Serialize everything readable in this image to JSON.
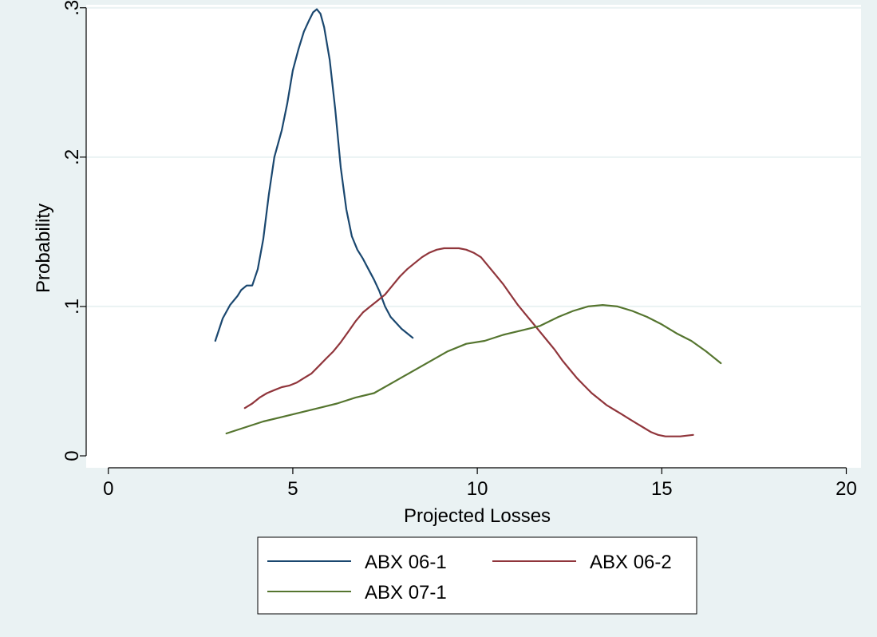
{
  "chart_data": {
    "type": "line",
    "title": "",
    "xlabel": "Projected Losses",
    "ylabel": "Probability",
    "xlim": [
      -0.6,
      20.4
    ],
    "ylim": [
      -0.008,
      0.302
    ],
    "x_ticks": [
      0,
      5,
      10,
      15,
      20
    ],
    "x_tick_labels": [
      "0",
      "5",
      "10",
      "15",
      "20"
    ],
    "y_ticks": [
      0,
      0.1,
      0.2,
      0.3
    ],
    "y_tick_labels": [
      "0",
      ".1",
      ".2",
      ".3"
    ],
    "grid": true,
    "legend_position": "bottom",
    "colors": {
      "background": "#eaf2f3",
      "plot_area": "#ffffff",
      "grid": "#eaf2f3"
    },
    "series": [
      {
        "name": "ABX 06-1",
        "color": "#1a476f",
        "x": [
          2.9,
          3.1,
          3.3,
          3.5,
          3.6,
          3.75,
          3.9,
          4.05,
          4.2,
          4.35,
          4.5,
          4.7,
          4.85,
          5.0,
          5.15,
          5.3,
          5.45,
          5.55,
          5.65,
          5.75,
          5.85,
          6.0,
          6.15,
          6.3,
          6.45,
          6.6,
          6.75,
          6.9,
          7.05,
          7.2,
          7.35,
          7.5,
          7.65,
          7.8,
          7.95,
          8.1,
          8.25
        ],
        "y": [
          0.077,
          0.092,
          0.101,
          0.107,
          0.111,
          0.114,
          0.114,
          0.125,
          0.145,
          0.175,
          0.2,
          0.218,
          0.236,
          0.258,
          0.272,
          0.284,
          0.292,
          0.297,
          0.299,
          0.296,
          0.287,
          0.265,
          0.232,
          0.193,
          0.165,
          0.147,
          0.138,
          0.132,
          0.125,
          0.118,
          0.11,
          0.1,
          0.093,
          0.089,
          0.085,
          0.082,
          0.079
        ]
      },
      {
        "name": "ABX 06-2",
        "color": "#90353b",
        "x": [
          3.7,
          3.9,
          4.1,
          4.3,
          4.5,
          4.7,
          4.9,
          5.1,
          5.3,
          5.5,
          5.7,
          5.9,
          6.1,
          6.3,
          6.5,
          6.7,
          6.9,
          7.1,
          7.3,
          7.5,
          7.7,
          7.9,
          8.1,
          8.3,
          8.5,
          8.7,
          8.9,
          9.1,
          9.3,
          9.5,
          9.7,
          9.9,
          10.1,
          10.3,
          10.5,
          10.7,
          10.9,
          11.1,
          11.3,
          11.5,
          11.7,
          11.9,
          12.1,
          12.3,
          12.5,
          12.7,
          12.9,
          13.1,
          13.3,
          13.5,
          13.7,
          13.9,
          14.1,
          14.3,
          14.5,
          14.7,
          14.9,
          15.1,
          15.3,
          15.5,
          15.85
        ],
        "y": [
          0.032,
          0.035,
          0.039,
          0.042,
          0.044,
          0.046,
          0.047,
          0.049,
          0.052,
          0.055,
          0.06,
          0.065,
          0.07,
          0.076,
          0.083,
          0.09,
          0.096,
          0.1,
          0.104,
          0.108,
          0.114,
          0.12,
          0.125,
          0.129,
          0.133,
          0.136,
          0.138,
          0.139,
          0.139,
          0.139,
          0.138,
          0.136,
          0.133,
          0.127,
          0.121,
          0.115,
          0.108,
          0.101,
          0.095,
          0.089,
          0.083,
          0.077,
          0.071,
          0.064,
          0.058,
          0.052,
          0.047,
          0.042,
          0.038,
          0.034,
          0.031,
          0.028,
          0.025,
          0.022,
          0.019,
          0.016,
          0.014,
          0.013,
          0.013,
          0.013,
          0.014
        ]
      },
      {
        "name": "ABX 07-1",
        "color": "#55752f",
        "x": [
          3.2,
          3.7,
          4.2,
          4.7,
          5.2,
          5.7,
          6.2,
          6.7,
          7.2,
          7.7,
          8.2,
          8.7,
          9.2,
          9.7,
          10.2,
          10.7,
          11.2,
          11.7,
          12.2,
          12.6,
          13.0,
          13.4,
          13.8,
          14.2,
          14.6,
          15.0,
          15.4,
          15.8,
          16.2,
          16.6
        ],
        "y": [
          0.015,
          0.019,
          0.023,
          0.026,
          0.029,
          0.032,
          0.035,
          0.039,
          0.042,
          0.049,
          0.056,
          0.063,
          0.07,
          0.075,
          0.077,
          0.081,
          0.084,
          0.087,
          0.093,
          0.097,
          0.1,
          0.101,
          0.1,
          0.097,
          0.093,
          0.088,
          0.082,
          0.077,
          0.07,
          0.062
        ]
      }
    ]
  }
}
